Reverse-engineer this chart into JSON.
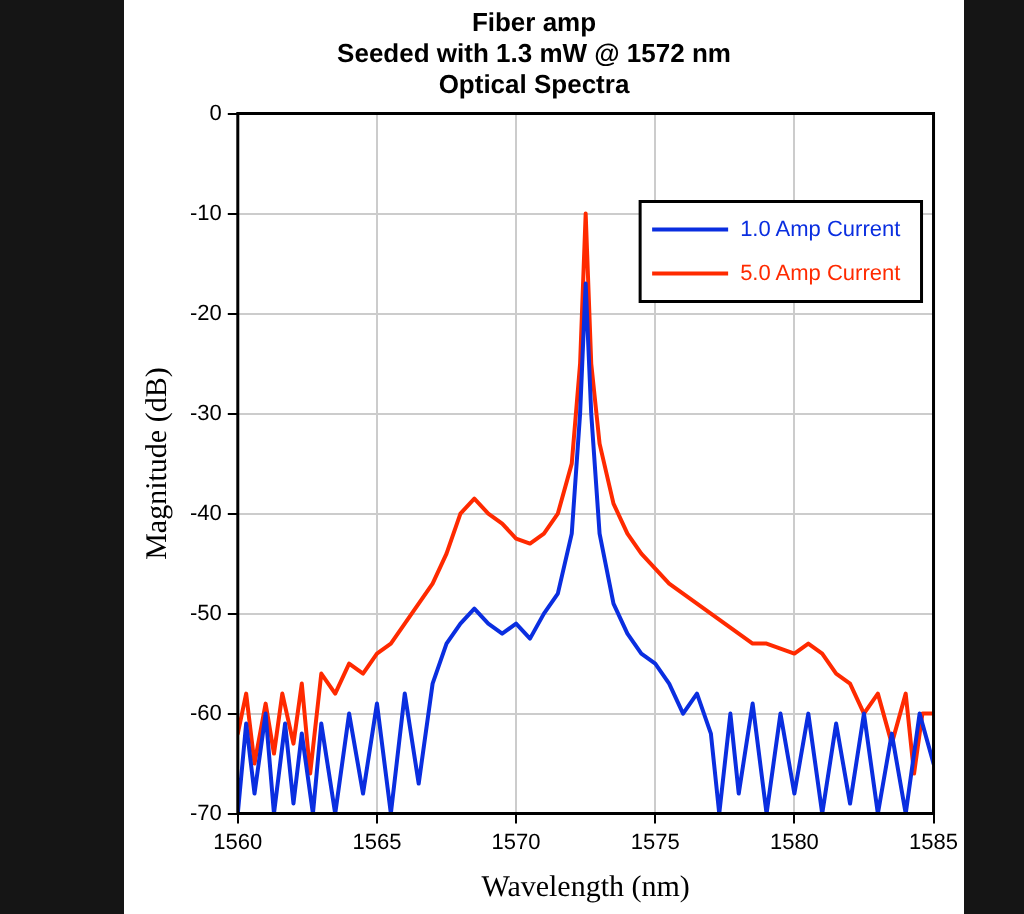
{
  "chart_data": {
    "type": "line",
    "title": "Fiber amp\nSeeded with 1.3 mW @ 1572 nm\nOptical Spectra",
    "xlabel": "Wavelength (nm)",
    "ylabel": "Magnitude (dB)",
    "xlim": [
      1560,
      1585
    ],
    "xticks": [
      1560,
      1565,
      1570,
      1575,
      1580,
      1585
    ],
    "ylim": [
      -70,
      0
    ],
    "yticks": [
      -70,
      -60,
      -50,
      -40,
      -30,
      -20,
      -10,
      0
    ],
    "grid": true,
    "legend": "top right",
    "marker": "none",
    "line_style": "solid",
    "series": [
      {
        "name": "1.0 Amp Current",
        "color": "#0a2ee0",
        "x": [
          1560,
          1560.3,
          1560.6,
          1561,
          1561.3,
          1561.7,
          1562,
          1562.3,
          1562.7,
          1563,
          1563.5,
          1564,
          1564.5,
          1565,
          1565.5,
          1566,
          1566.5,
          1567,
          1567.5,
          1568,
          1568.5,
          1569,
          1569.5,
          1570,
          1570.5,
          1571,
          1571.5,
          1572,
          1572.3,
          1572.5,
          1572.7,
          1573,
          1573.5,
          1574,
          1574.5,
          1575,
          1575.5,
          1576,
          1576.5,
          1577,
          1577.3,
          1577.7,
          1578,
          1578.5,
          1579,
          1579.5,
          1580,
          1580.5,
          1581,
          1581.5,
          1582,
          1582.5,
          1583,
          1583.5,
          1584,
          1584.5,
          1585
        ],
        "values": [
          -70,
          -61,
          -68,
          -60,
          -70,
          -61,
          -69,
          -62,
          -70,
          -61,
          -70,
          -60,
          -68,
          -59,
          -70,
          -58,
          -67,
          -57,
          -53,
          -51,
          -49.5,
          -51,
          -52,
          -51,
          -52.5,
          -50,
          -48,
          -42,
          -30,
          -17,
          -30,
          -42,
          -49,
          -52,
          -54,
          -55,
          -57,
          -60,
          -58,
          -62,
          -70,
          -60,
          -68,
          -59,
          -70,
          -60,
          -68,
          -60,
          -70,
          -61,
          -69,
          -60,
          -70,
          -62,
          -70,
          -60,
          -65
        ]
      },
      {
        "name": "5.0 Amp Current",
        "color": "#ff2a00",
        "x": [
          1560,
          1560.3,
          1560.6,
          1561,
          1561.3,
          1561.6,
          1562,
          1562.3,
          1562.6,
          1563,
          1563.5,
          1564,
          1564.5,
          1565,
          1565.5,
          1566,
          1566.5,
          1567,
          1567.5,
          1568,
          1568.5,
          1569,
          1569.5,
          1570,
          1570.5,
          1571,
          1571.5,
          1572,
          1572.3,
          1572.5,
          1572.7,
          1573,
          1573.5,
          1574,
          1574.5,
          1575,
          1575.5,
          1576,
          1576.5,
          1577,
          1577.5,
          1578,
          1578.5,
          1579,
          1579.5,
          1580,
          1580.5,
          1581,
          1581.5,
          1582,
          1582.5,
          1583,
          1583.5,
          1584,
          1584.3,
          1584.6,
          1585
        ],
        "values": [
          -62,
          -58,
          -65,
          -59,
          -64,
          -58,
          -63,
          -57,
          -66,
          -56,
          -58,
          -55,
          -56,
          -54,
          -53,
          -51,
          -49,
          -47,
          -44,
          -40,
          -38.5,
          -40,
          -41,
          -42.5,
          -43,
          -42,
          -40,
          -35,
          -25,
          -10,
          -25,
          -33,
          -39,
          -42,
          -44,
          -45.5,
          -47,
          -48,
          -49,
          -50,
          -51,
          -52,
          -53,
          -53,
          -53.5,
          -54,
          -53,
          -54,
          -56,
          -57,
          -60,
          -58,
          -63,
          -58,
          -66,
          -60,
          -60
        ]
      }
    ]
  }
}
